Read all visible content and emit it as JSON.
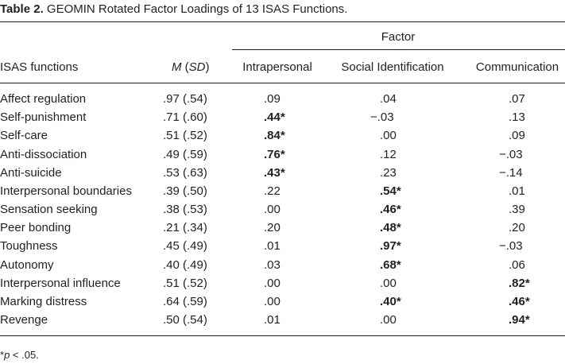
{
  "caption": {
    "label": "Table 2.",
    "text": "GEOMIN Rotated Factor Loadings of 13 ISAS Functions."
  },
  "header": {
    "group_label": "Factor",
    "col_name": "ISAS functions",
    "col_m": "M",
    "col_sd": "SD",
    "factors": [
      "Intrapersonal",
      "Social Identification",
      "Communication"
    ]
  },
  "rows": [
    {
      "name": "Affect regulation",
      "msd": ".97 (.54)",
      "values": [
        ".09",
        ".04",
        ".07"
      ]
    },
    {
      "name": "Self-punishment",
      "msd": ".71 (.60)",
      "values": [
        ".44*",
        "−.03",
        ".13"
      ]
    },
    {
      "name": "Self-care",
      "msd": ".51 (.52)",
      "values": [
        ".84*",
        ".00",
        ".09"
      ]
    },
    {
      "name": "Anti-dissociation",
      "msd": ".49 (.59)",
      "values": [
        ".76*",
        ".12",
        "−.03"
      ]
    },
    {
      "name": "Anti-suicide",
      "msd": ".53 (.63)",
      "values": [
        ".43*",
        ".23",
        "−.14"
      ]
    },
    {
      "name": "Interpersonal boundaries",
      "msd": ".39 (.50)",
      "values": [
        ".22",
        ".54*",
        ".01"
      ]
    },
    {
      "name": "Sensation seeking",
      "msd": ".38 (.53)",
      "values": [
        ".00",
        ".46*",
        ".39"
      ]
    },
    {
      "name": "Peer bonding",
      "msd": ".21 (.34)",
      "values": [
        ".20",
        ".48*",
        ".20"
      ]
    },
    {
      "name": "Toughness",
      "msd": ".45 (.49)",
      "values": [
        ".01",
        ".97*",
        "−.03"
      ]
    },
    {
      "name": "Autonomy",
      "msd": ".40 (.49)",
      "values": [
        ".03",
        ".68*",
        ".06"
      ]
    },
    {
      "name": "Interpersonal influence",
      "msd": ".51 (.52)",
      "values": [
        ".00",
        ".00",
        ".82*"
      ]
    },
    {
      "name": "Marking distress",
      "msd": ".64 (.59)",
      "values": [
        ".00",
        ".40*",
        ".46*"
      ]
    },
    {
      "name": "Revenge",
      "msd": ".50 (.54)",
      "values": [
        ".01",
        ".00",
        ".94*"
      ]
    }
  ],
  "footnote": {
    "symbol": "*",
    "p": "p",
    "text": " < .05."
  }
}
